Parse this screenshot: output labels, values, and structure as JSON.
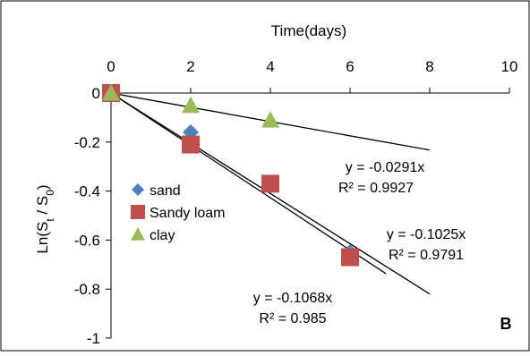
{
  "chart_data": {
    "type": "scatter",
    "panel_label": "B",
    "xlabel": "Time(days)",
    "ylabel_parts": [
      "Ln(S",
      "t",
      " / S",
      "0",
      ")"
    ],
    "x_axis_position": "top",
    "xlim": [
      0,
      10
    ],
    "ylim": [
      -1,
      0
    ],
    "x_ticks": [
      0,
      2,
      4,
      6,
      8,
      10
    ],
    "y_ticks": [
      0,
      -0.2,
      -0.4,
      -0.6,
      -0.8,
      -1
    ],
    "y_tick_labels": [
      "0",
      "-0.2",
      "-0.4",
      "-0.6",
      "-0.8",
      "-1"
    ],
    "grid": false,
    "legend_position": "left-middle",
    "series": [
      {
        "name": "sand",
        "marker": "diamond",
        "color": "#4F81BD",
        "x": [
          0,
          2,
          4,
          6
        ],
        "y": [
          0,
          -0.16,
          -0.37,
          -0.65
        ],
        "trend_slope": -0.1068,
        "trend_equation": "y = -0.1068x",
        "trend_r2": "R² = 0.985"
      },
      {
        "name": "Sandy loam",
        "marker": "square",
        "color": "#C0504D",
        "x": [
          0,
          2,
          4,
          6
        ],
        "y": [
          0,
          -0.21,
          -0.37,
          -0.67
        ],
        "trend_slope": -0.1025,
        "trend_equation": "y = -0.1025x",
        "trend_r2": "R² = 0.9791"
      },
      {
        "name": "clay",
        "marker": "triangle",
        "color": "#9BBB59",
        "x": [
          0,
          2,
          4
        ],
        "y": [
          0,
          -0.05,
          -0.11
        ],
        "trend_slope": -0.0291,
        "trend_equation": "y = -0.0291x",
        "trend_r2": "R² = 0.9927"
      }
    ]
  }
}
